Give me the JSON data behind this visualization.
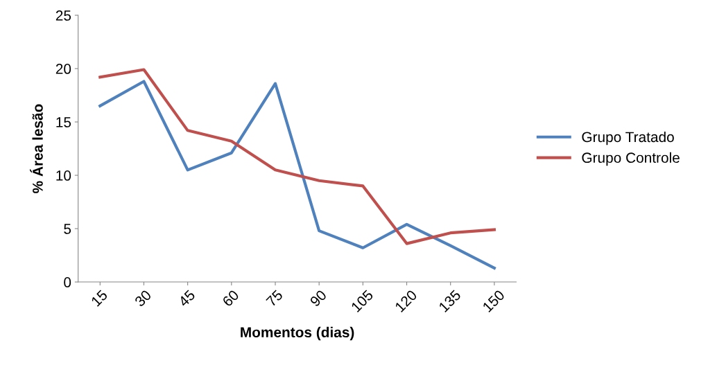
{
  "chart_data": {
    "type": "line",
    "xlabel": "Momentos (dias)",
    "ylabel": "% Área lesão",
    "categories": [
      "15",
      "30",
      "45",
      "60",
      "75",
      "90",
      "105",
      "120",
      "135",
      "150"
    ],
    "series": [
      {
        "name": "Grupo Tratado",
        "color": "#4f81bd",
        "values": [
          16.5,
          18.8,
          10.5,
          12.1,
          18.6,
          4.8,
          3.2,
          5.4,
          3.4,
          1.3
        ]
      },
      {
        "name": "Grupo Controle",
        "color": "#c0504d",
        "values": [
          19.2,
          19.9,
          14.2,
          13.2,
          10.5,
          9.5,
          9.0,
          3.6,
          4.6,
          4.9
        ]
      }
    ],
    "ylim": [
      0,
      25
    ],
    "yticks": [
      0,
      5,
      10,
      15,
      20,
      25
    ],
    "grid": false,
    "legend": "right",
    "marker": "none",
    "line_style": "solid"
  }
}
